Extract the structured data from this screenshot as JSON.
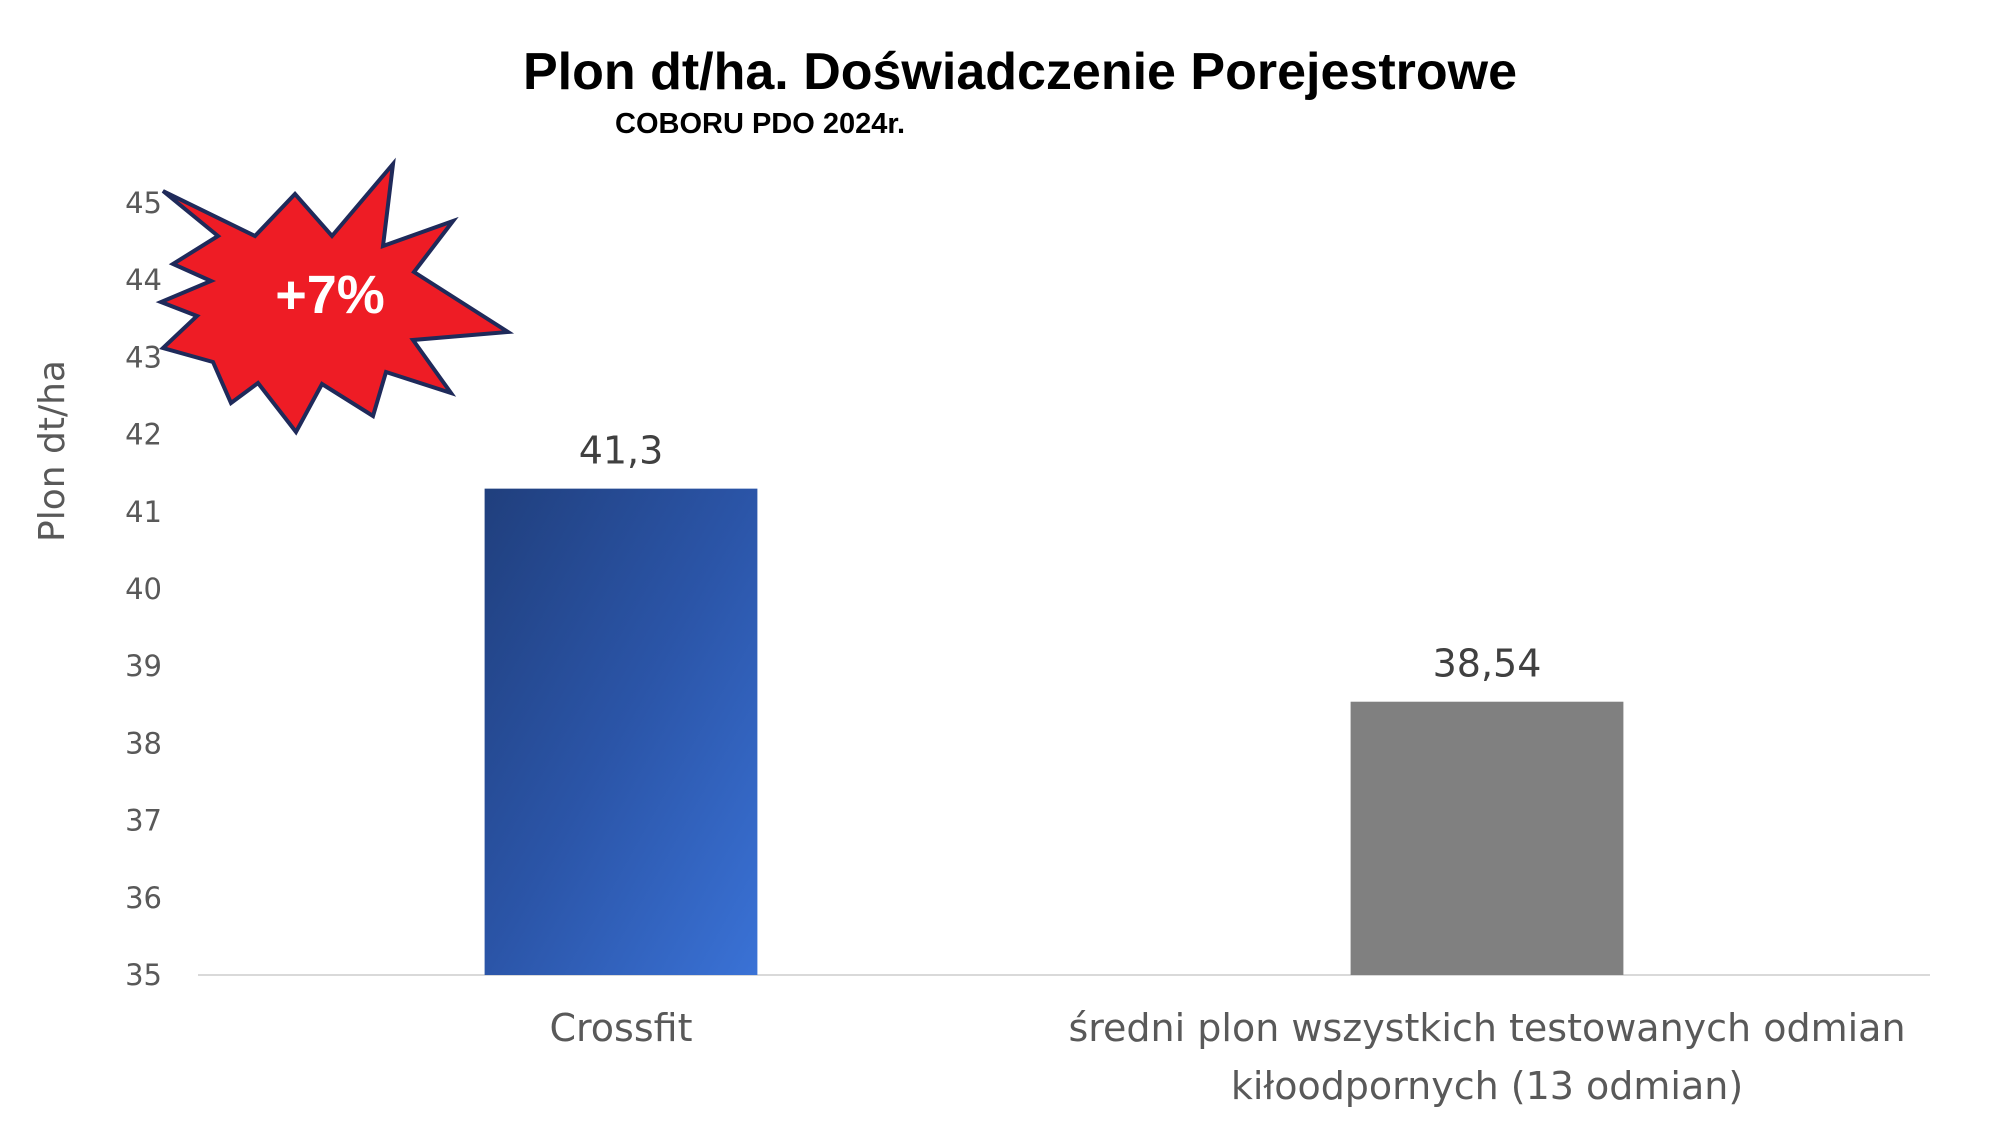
{
  "chart_data": {
    "type": "bar",
    "title": "Plon dt/ha. Doświadczenie Porejestrowe",
    "subtitle": "COBORU PDO  2024r.",
    "ylabel": "Plon dt/ha",
    "xlabel": "",
    "ylim": [
      35,
      45
    ],
    "yticks": [
      35,
      36,
      37,
      38,
      39,
      40,
      41,
      42,
      43,
      44,
      45
    ],
    "grid": false,
    "categories": [
      [
        "Crossfit"
      ],
      [
        "średni plon wszystkich testowanych odmian",
        "kiłoodpornych (13 odmian)"
      ]
    ],
    "values": [
      41.3,
      38.54
    ],
    "data_labels": [
      "41,3",
      "38,54"
    ],
    "colors": [
      "#2F5CB5",
      "#808080"
    ],
    "annotation": {
      "text": "+7%",
      "fill": "#EE1C25",
      "outline": "#1F2A5A"
    }
  }
}
